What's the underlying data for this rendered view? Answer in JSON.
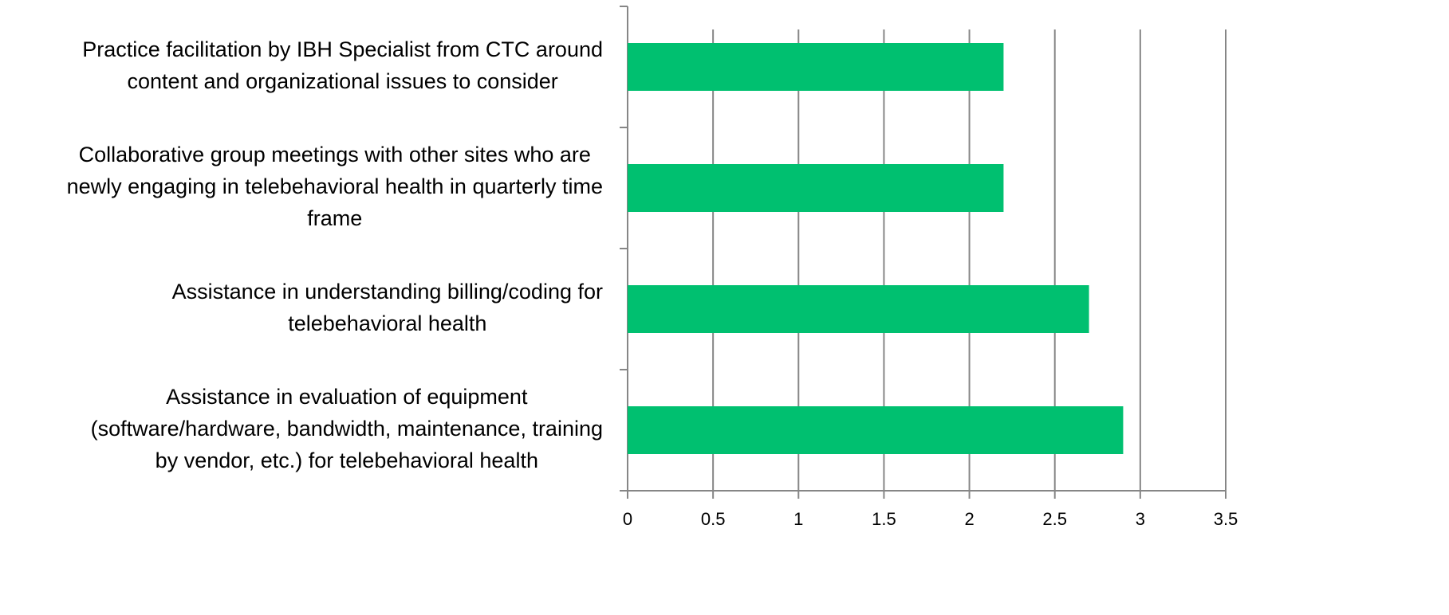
{
  "chart_data": {
    "type": "bar",
    "orientation": "horizontal",
    "categories": [
      [
        "Practice facilitation by IBH Specialist from CTC around",
        "content and organizational issues to consider"
      ],
      [
        "Collaborative group meetings with other sites who are",
        "newly engaging in telebehavioral health in quarterly time",
        "frame"
      ],
      [
        "Assistance in understanding billing/coding for",
        "telebehavioral health"
      ],
      [
        "Assistance in evaluation of equipment",
        "(software/hardware, bandwidth, maintenance, training",
        "by vendor, etc.) for telebehavioral health"
      ]
    ],
    "values": [
      2.2,
      2.2,
      2.7,
      2.9
    ],
    "color": "#00c070",
    "xlim": [
      0,
      3.5
    ],
    "xticks": [
      0,
      0.5,
      1,
      1.5,
      2,
      2.5,
      3,
      3.5
    ],
    "grid": true
  }
}
